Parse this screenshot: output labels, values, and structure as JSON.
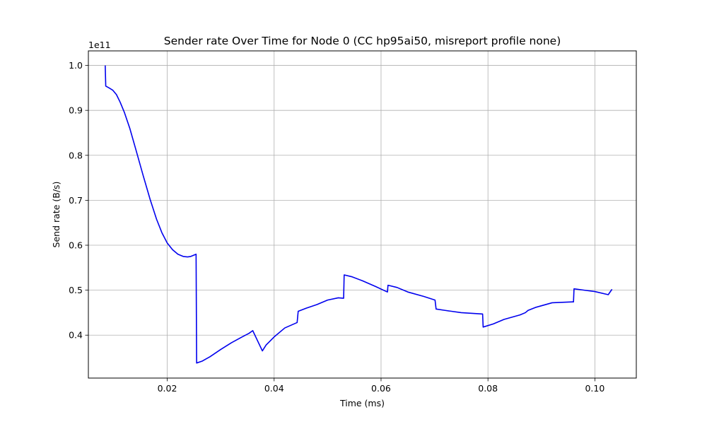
{
  "chart_data": {
    "type": "line",
    "title": "Sender rate Over Time for Node 0 (CC hp95ai50, misreport profile none)",
    "xlabel": "Time (ms)",
    "ylabel": "Send rate (B/s)",
    "y_offset_label": "1e11",
    "y_scale_factor": 100000000000.0,
    "xlim": [
      0.00525,
      0.10775
    ],
    "ylim": [
      0.3045,
      1.0323
    ],
    "x_ticks": [
      0.02,
      0.04,
      0.06,
      0.08,
      0.1
    ],
    "x_tick_labels": [
      "0.02",
      "0.04",
      "0.06",
      "0.08",
      "0.10"
    ],
    "y_ticks": [
      0.4,
      0.5,
      0.6,
      0.7,
      0.8,
      0.9,
      1.0
    ],
    "y_tick_labels": [
      "0.4",
      "0.5",
      "0.6",
      "0.7",
      "0.8",
      "0.9",
      "1.0"
    ],
    "grid": true,
    "line_color": "#0000ee",
    "series": [
      {
        "values_unit": "1e11 B/s",
        "x": [
          0.0084,
          0.0085,
          0.0091,
          0.0098,
          0.0105,
          0.0112,
          0.012,
          0.013,
          0.0142,
          0.0155,
          0.0168,
          0.018,
          0.019,
          0.02,
          0.021,
          0.022,
          0.023,
          0.0238,
          0.0244,
          0.025,
          0.0254,
          0.0255,
          0.0265,
          0.028,
          0.03,
          0.032,
          0.034,
          0.0353,
          0.036,
          0.037,
          0.0378,
          0.0385,
          0.04,
          0.042,
          0.0443,
          0.0445,
          0.046,
          0.048,
          0.05,
          0.052,
          0.053,
          0.0531,
          0.0545,
          0.0565,
          0.059,
          0.061,
          0.0612,
          0.0613,
          0.063,
          0.065,
          0.068,
          0.0701,
          0.0703,
          0.072,
          0.075,
          0.0789,
          0.079,
          0.0791,
          0.081,
          0.083,
          0.086,
          0.087,
          0.0875,
          0.089,
          0.092,
          0.0958,
          0.096,
          0.0961,
          0.098,
          0.1,
          0.1025,
          0.1032
        ],
        "values": [
          1.0,
          0.954,
          0.95,
          0.945,
          0.935,
          0.918,
          0.895,
          0.86,
          0.81,
          0.755,
          0.702,
          0.658,
          0.628,
          0.605,
          0.59,
          0.58,
          0.575,
          0.574,
          0.575,
          0.578,
          0.58,
          0.338,
          0.342,
          0.352,
          0.368,
          0.383,
          0.396,
          0.404,
          0.41,
          0.385,
          0.365,
          0.378,
          0.396,
          0.416,
          0.428,
          0.453,
          0.46,
          0.468,
          0.478,
          0.483,
          0.482,
          0.534,
          0.53,
          0.521,
          0.508,
          0.497,
          0.496,
          0.511,
          0.506,
          0.496,
          0.486,
          0.478,
          0.458,
          0.455,
          0.45,
          0.447,
          0.447,
          0.418,
          0.425,
          0.435,
          0.445,
          0.45,
          0.455,
          0.462,
          0.472,
          0.474,
          0.474,
          0.503,
          0.5,
          0.497,
          0.49,
          0.502
        ]
      }
    ]
  }
}
